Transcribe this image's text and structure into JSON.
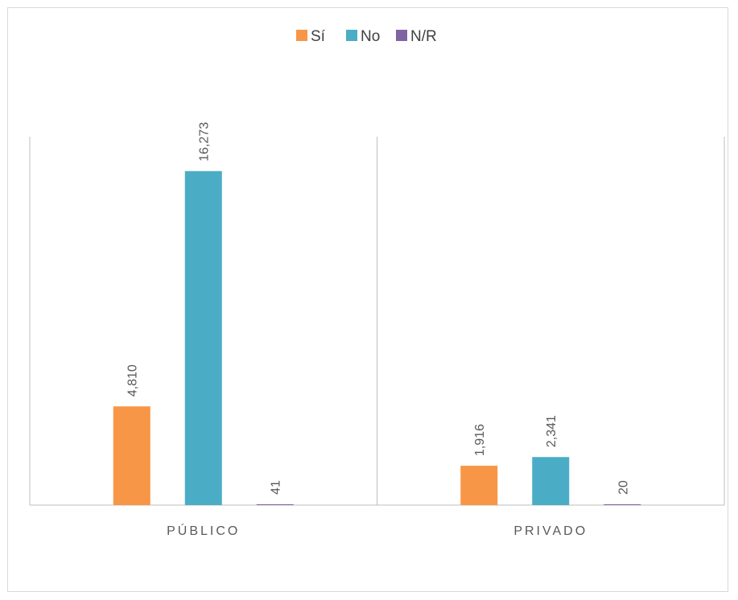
{
  "chart_data": {
    "type": "bar",
    "categories": [
      "PÚBLICO",
      "PRIVADO"
    ],
    "series": [
      {
        "name": "Sí",
        "color": "#f79646",
        "values": [
          4810,
          1916
        ],
        "labels": [
          "4,810",
          "1,916"
        ]
      },
      {
        "name": "No",
        "color": "#4bacc6",
        "values": [
          16273,
          2341
        ],
        "labels": [
          "16,273",
          "2,341"
        ]
      },
      {
        "name": "N/R",
        "color": "#8064a2",
        "values": [
          41,
          20
        ],
        "labels": [
          "41",
          "20"
        ]
      }
    ],
    "title": "",
    "xlabel": "",
    "ylabel": "",
    "ylim": [
      0,
      18000
    ],
    "grid": false,
    "legend": "top-center",
    "axis_color": "#bfbfbf"
  }
}
